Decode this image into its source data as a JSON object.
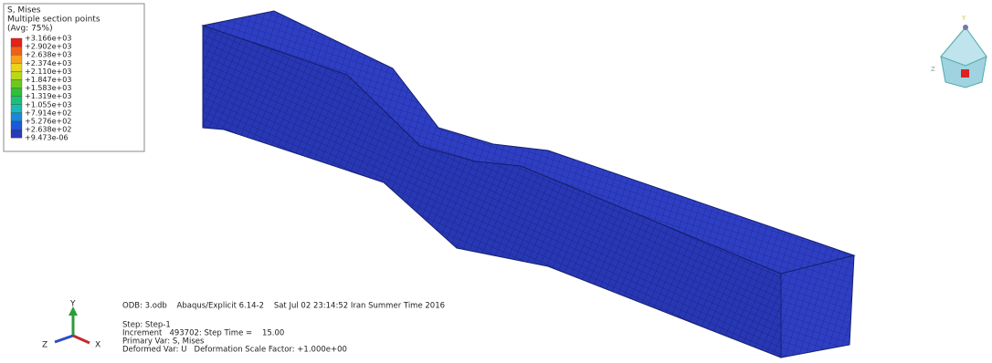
{
  "legend": {
    "title": [
      "S, Mises",
      "Multiple section points",
      "(Avg: 75%)"
    ],
    "values": [
      "+3.166e+03",
      "+2.902e+03",
      "+2.638e+03",
      "+2.374e+03",
      "+2.110e+03",
      "+1.847e+03",
      "+1.583e+03",
      "+1.319e+03",
      "+1.055e+03",
      "+7.914e+02",
      "+5.276e+02",
      "+2.638e+02",
      "+9.473e-06"
    ]
  },
  "info": [
    "ODB: 3.odb    Abaqus/Explicit 6.14-2    Sat Jul 02 23:14:52 Iran Summer Time 2016",
    "Step: Step-1",
    "Increment   493702: Step Time =    15.00",
    "Primary Var: S, Mises",
    "Deformed Var: U   Deformation Scale Factor: +1.000e+00"
  ],
  "triad": {
    "y": "Y",
    "z": "Z",
    "x": "X"
  },
  "view_cube": {
    "y": "Y",
    "z": "Z"
  }
}
